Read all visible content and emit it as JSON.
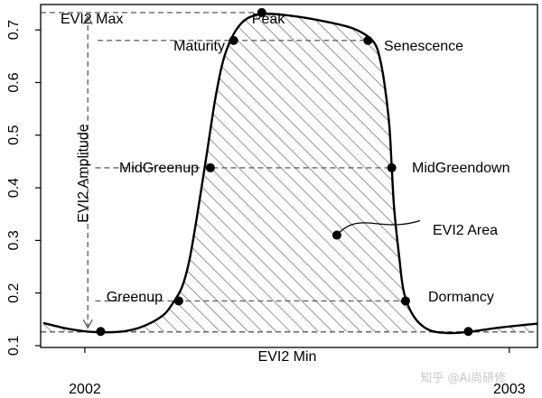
{
  "chart_data": {
    "type": "line",
    "ylim": [
      0.1,
      0.75
    ],
    "yticks": [
      0.1,
      0.2,
      0.3,
      0.4,
      0.5,
      0.6,
      0.7
    ],
    "x_tick_labels": [
      "2002",
      "2003"
    ],
    "curve": {
      "x": [
        0.0,
        0.05,
        0.1,
        0.16,
        0.2,
        0.24,
        0.26,
        0.28,
        0.295,
        0.31,
        0.33,
        0.35,
        0.37,
        0.4,
        0.44,
        0.5,
        0.56,
        0.62,
        0.65,
        0.67,
        0.68,
        0.69,
        0.7,
        0.705,
        0.71,
        0.72,
        0.73,
        0.75,
        0.78,
        0.82,
        0.86,
        0.92,
        1.0
      ],
      "y": [
        0.143,
        0.132,
        0.126,
        0.127,
        0.136,
        0.156,
        0.178,
        0.21,
        0.26,
        0.34,
        0.46,
        0.58,
        0.66,
        0.712,
        0.73,
        0.727,
        0.718,
        0.705,
        0.692,
        0.675,
        0.65,
        0.6,
        0.52,
        0.44,
        0.36,
        0.27,
        0.2,
        0.155,
        0.13,
        0.124,
        0.126,
        0.134,
        0.142
      ]
    },
    "points": [
      {
        "label": "",
        "x": 0.116,
        "y": 0.127
      },
      {
        "label": "Greenup",
        "x": 0.274,
        "y": 0.185
      },
      {
        "label": "MidGreenup",
        "x": 0.338,
        "y": 0.438
      },
      {
        "label": "Maturity",
        "x": 0.385,
        "y": 0.68
      },
      {
        "label": "Peak",
        "x": 0.442,
        "y": 0.733
      },
      {
        "label": "Senescence",
        "x": 0.657,
        "y": 0.68
      },
      {
        "label": "MidGreendown",
        "x": 0.705,
        "y": 0.438
      },
      {
        "label": "Dormancy",
        "x": 0.733,
        "y": 0.185
      },
      {
        "label": "",
        "x": 0.86,
        "y": 0.127
      }
    ],
    "area_point": {
      "label": "EVI2 Area",
      "x": 0.594,
      "y": 0.31
    },
    "max_label": "EVI2 Max",
    "min_label": "EVI2 Min",
    "amplitude_label": "EVI2 Amplitude"
  },
  "watermark": "知乎 @Ai尚研修"
}
